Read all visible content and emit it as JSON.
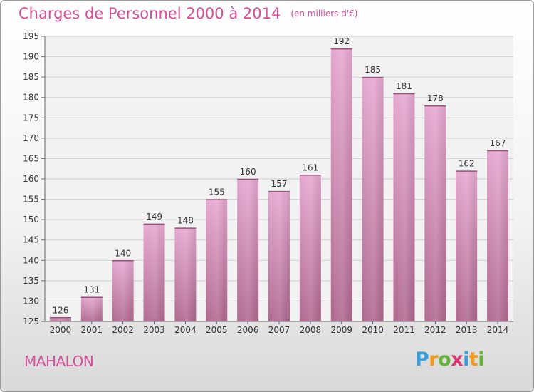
{
  "title": "Charges de Personnel 2000 à 2014",
  "subtitle": "(en milliers d'€)",
  "commune": "MAHALON",
  "logo": {
    "letters": [
      "P",
      "r",
      "o",
      "x",
      "i",
      "t",
      "i"
    ],
    "colors": [
      "#3ca0d8",
      "#f29a1d",
      "#67b33a",
      "#d9356f",
      "#3ca0d8",
      "#f29a1d",
      "#67b33a"
    ]
  },
  "chart_data": {
    "type": "bar",
    "categories": [
      "2000",
      "2001",
      "2002",
      "2003",
      "2004",
      "2005",
      "2006",
      "2007",
      "2008",
      "2009",
      "2010",
      "2011",
      "2012",
      "2013",
      "2014"
    ],
    "values": [
      126,
      131,
      140,
      149,
      148,
      155,
      160,
      157,
      161,
      192,
      185,
      181,
      178,
      162,
      167
    ],
    "title": "Charges de Personnel 2000 à 2014",
    "subtitle": "(en milliers d'€)",
    "ylim": [
      125,
      195
    ],
    "yticks": [
      125,
      130,
      135,
      140,
      145,
      150,
      155,
      160,
      165,
      170,
      175,
      180,
      185,
      190,
      195
    ],
    "grid": true,
    "bar_color": "#d98cba"
  }
}
